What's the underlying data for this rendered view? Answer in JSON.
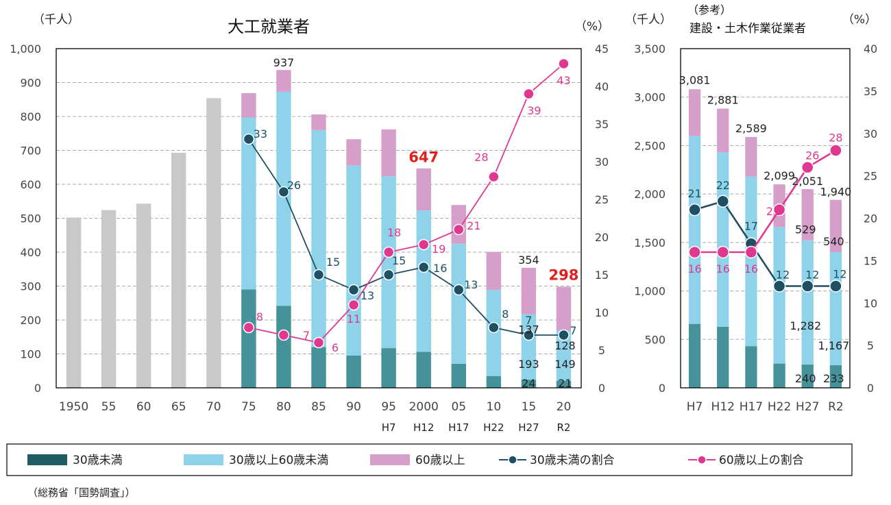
{
  "chart_data": [
    {
      "type": "bar",
      "title": "大工就業者",
      "left_unit": "（千人）",
      "right_unit": "（%）",
      "ylim": [
        0,
        1000
      ],
      "y2lim": [
        0,
        45
      ],
      "yticks": [
        "0",
        "100",
        "200",
        "300",
        "400",
        "500",
        "600",
        "700",
        "800",
        "900",
        "1,000"
      ],
      "y2ticks": [
        "0",
        "5",
        "10",
        "15",
        "20",
        "25",
        "30",
        "35",
        "40",
        "45"
      ],
      "categories": [
        "1950",
        "55",
        "60",
        "65",
        "70",
        "75",
        "80",
        "85",
        "90",
        "95",
        "2000",
        "05",
        "10",
        "15",
        "20"
      ],
      "sub_categories": [
        "",
        "",
        "",
        "",
        "",
        "",
        "",
        "",
        "",
        "H7",
        "H12",
        "H17",
        "H22",
        "H27",
        "R2"
      ],
      "total_only": [
        502,
        524,
        543,
        693,
        854
      ],
      "series": [
        {
          "name": "30歳未満",
          "values": [
            null,
            null,
            null,
            null,
            null,
            290,
            242,
            120,
            95,
            117,
            106,
            71,
            35,
            24,
            21
          ]
        },
        {
          "name": "30歳以上60歳未満",
          "values": [
            null,
            null,
            null,
            null,
            null,
            507,
            631,
            640,
            560,
            507,
            417,
            354,
            254,
            193,
            149
          ]
        },
        {
          "name": "60歳以上",
          "values": [
            null,
            null,
            null,
            null,
            null,
            72,
            64,
            46,
            78,
            138,
            124,
            114,
            112,
            137,
            128
          ]
        },
        {
          "name": "30歳未満の割合",
          "values": [
            null,
            null,
            null,
            null,
            null,
            33,
            26,
            15,
            13,
            15,
            16,
            13,
            8,
            7,
            7
          ]
        },
        {
          "name": "60歳以上の割合",
          "values": [
            null,
            null,
            null,
            null,
            null,
            8,
            7,
            6,
            11,
            18,
            19,
            21,
            28,
            39,
            43
          ]
        }
      ],
      "totals": {
        "80": "937",
        "2000": "647",
        "15": "354",
        "20": "298"
      },
      "segment_labels": {
        "15": {
          "upper": "137",
          "middle": "193",
          "lower": "24"
        },
        "20": {
          "upper": "128",
          "middle": "149",
          "lower": "21"
        }
      },
      "young_ratio_labels": [
        "",
        "",
        "",
        "",
        "",
        "33",
        "26",
        "15",
        "13",
        "15",
        "16",
        "13",
        "8",
        "7",
        "7"
      ],
      "old_ratio_labels": [
        "",
        "",
        "",
        "",
        "",
        "8",
        "7",
        "6",
        "11",
        "18",
        "19",
        "21",
        "28",
        "39",
        "43"
      ]
    },
    {
      "type": "bar",
      "note": "（参考）",
      "title": "建設・土木作業従業者",
      "left_unit": "（千人）",
      "right_unit": "（%）",
      "ylim": [
        0,
        3500
      ],
      "y2lim": [
        0,
        40
      ],
      "yticks": [
        "0",
        "500",
        "1,000",
        "1,500",
        "2,000",
        "2,500",
        "3,000",
        "3,500"
      ],
      "y2ticks": [
        "0",
        "5",
        "10",
        "15",
        "20",
        "25",
        "30",
        "35",
        "40"
      ],
      "categories": [
        "H7",
        "H12",
        "H17",
        "H22",
        "H27",
        "R2"
      ],
      "series": [
        {
          "name": "30歳未満",
          "values": [
            660,
            630,
            430,
            250,
            240,
            233
          ]
        },
        {
          "name": "30歳以上60歳未満",
          "values": [
            1940,
            1800,
            1750,
            1410,
            1282,
            1167
          ]
        },
        {
          "name": "60歳以上",
          "values": [
            481,
            451,
            409,
            439,
            529,
            540
          ]
        },
        {
          "name": "30歳未満の割合",
          "values": [
            21,
            22,
            17,
            12,
            12,
            12
          ]
        },
        {
          "name": "60歳以上の割合",
          "values": [
            16,
            16,
            16,
            21,
            26,
            28
          ]
        }
      ],
      "totals": [
        "3,081",
        "2,881",
        "2,589",
        "2,099",
        "2,051",
        "1,940"
      ],
      "segment_labels": {
        "H27": {
          "upper": "529",
          "middle": "1,282",
          "lower": "240"
        },
        "R2": {
          "upper": "540",
          "middle": "1,167",
          "lower": "233"
        }
      },
      "young_ratio_labels": [
        "21",
        "22",
        "17",
        "12",
        "12",
        "12"
      ],
      "old_ratio_labels": [
        "16",
        "16",
        "16",
        "21",
        "26",
        "28"
      ]
    }
  ],
  "legend": {
    "items": [
      {
        "label": "30歳未満",
        "kind": "box",
        "color": "#1f5c66"
      },
      {
        "label": "30歳以上60歳未満",
        "kind": "box",
        "color": "#8ed3ea"
      },
      {
        "label": "60歳以上",
        "kind": "box",
        "color": "#d59fca"
      },
      {
        "label": "30歳未満の割合",
        "kind": "line",
        "color": "#1f4f63"
      },
      {
        "label": "60歳以上の割合",
        "kind": "line",
        "color": "#e0388f"
      }
    ]
  },
  "colors": {
    "young": "#46929a",
    "middle": "#8ed3ea",
    "old": "#d59fca",
    "total_only": "#c9c9c9",
    "young_line": "#1f4f63",
    "old_line": "#e0388f",
    "highlight": "#e0201b"
  },
  "source": "（総務省「国勢調査」）"
}
